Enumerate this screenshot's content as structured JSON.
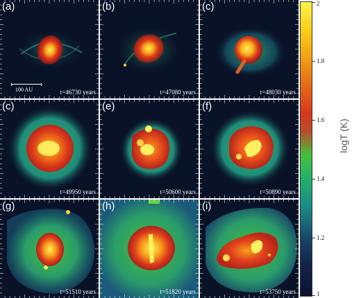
{
  "panels": [
    {
      "label": "(a)",
      "time": "t=46730 years",
      "scalebar": "100 AU"
    },
    {
      "label": "(b)",
      "time": "t=47080 years"
    },
    {
      "label": "(c)",
      "time": "t=48030 years"
    },
    {
      "label": "(c)",
      "time": "t=49950 years"
    },
    {
      "label": "(e)",
      "time": "t=50600 years"
    },
    {
      "label": "(f)",
      "time": "t=50890 years"
    },
    {
      "label": "(g)",
      "time": "t=51510 years"
    },
    {
      "label": "(h)",
      "time": "t=51820 years"
    },
    {
      "label": "(i)",
      "time": "t=53750 years"
    }
  ],
  "colorbar": {
    "title": "logT (K)",
    "ticks": [
      "2",
      "1.8",
      "1.6",
      "1.4",
      "1.2",
      "1"
    ]
  },
  "colors": {
    "background": "#0a1228",
    "envelope_green": "#2ea85a",
    "disk_red": "#d8361c",
    "core_yellow": "#ffe640"
  }
}
